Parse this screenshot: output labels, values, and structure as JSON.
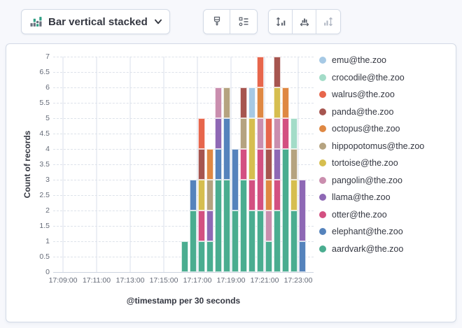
{
  "toolbar": {
    "chart_type_label": "Bar vertical stacked",
    "chart_type_icon": "stacked-bars-icon",
    "style_buttons": [
      {
        "name": "visual-options-button",
        "icon": "brush-icon",
        "enabled": true
      },
      {
        "name": "legend-settings-button",
        "icon": "list-settings-icon",
        "enabled": true
      }
    ],
    "axis_buttons": [
      {
        "name": "left-axis-button",
        "icon": "axis-left-icon",
        "enabled": true
      },
      {
        "name": "bottom-axis-button",
        "icon": "axis-bottom-icon",
        "enabled": true
      },
      {
        "name": "right-axis-button",
        "icon": "axis-right-icon",
        "enabled": false
      }
    ]
  },
  "chart": {
    "y_axis": {
      "title": "Count of records",
      "min": 0,
      "max": 7,
      "step": 0.5
    },
    "x_axis": {
      "title": "@timestamp per 30 seconds",
      "ticks": [
        "17:09:00",
        "17:11:00",
        "17:13:00",
        "17:15:00",
        "17:17:00",
        "17:19:00",
        "17:21:00",
        "17:23:00"
      ]
    },
    "legend_position": "right"
  },
  "chart_data": {
    "type": "bar",
    "stacked": true,
    "title": "",
    "xlabel": "@timestamp per 30 seconds",
    "ylabel": "Count of records",
    "ylim": [
      0,
      7
    ],
    "y_tick_step": 0.5,
    "grid": true,
    "x": [
      "17:16:00",
      "17:16:30",
      "17:17:00",
      "17:17:30",
      "17:18:00",
      "17:18:30",
      "17:19:00",
      "17:19:30",
      "17:20:00",
      "17:20:30",
      "17:21:00",
      "17:21:30",
      "17:22:00",
      "17:22:30",
      "17:23:00"
    ],
    "bucket_seconds": 30,
    "stack_order_note": "series listed bottom-to-top of stack; legend shows reverse order",
    "series": [
      {
        "name": "aardvark@the.zoo",
        "color": "#4aad90",
        "values": [
          1,
          2,
          1,
          1,
          3,
          3,
          2,
          3,
          2,
          2,
          1,
          2,
          4,
          2,
          0
        ]
      },
      {
        "name": "elephant@the.zoo",
        "color": "#5583bc",
        "values": [
          0,
          1,
          0,
          0,
          1,
          2,
          2,
          0,
          0,
          0,
          0,
          0,
          0,
          0,
          1
        ]
      },
      {
        "name": "otter@the.zoo",
        "color": "#d35081",
        "values": [
          0,
          0,
          1,
          0,
          0,
          0,
          0,
          1,
          1,
          2,
          0,
          1,
          1,
          0,
          0
        ]
      },
      {
        "name": "llama@the.zoo",
        "color": "#8e68b5",
        "values": [
          0,
          0,
          0,
          1,
          1,
          0,
          0,
          0,
          0,
          0,
          0,
          1,
          0,
          0,
          2
        ]
      },
      {
        "name": "pangolin@the.zoo",
        "color": "#ca8eae",
        "values": [
          0,
          0,
          0,
          0,
          1,
          0,
          0,
          0,
          0,
          1,
          1,
          1,
          0,
          0,
          0
        ]
      },
      {
        "name": "tortoise@the.zoo",
        "color": "#d6be4f",
        "values": [
          0,
          0,
          1,
          0,
          0,
          0,
          0,
          0,
          2,
          0,
          0,
          1,
          0,
          1,
          0
        ]
      },
      {
        "name": "hippopotomus@the.zoo",
        "color": "#b5a380",
        "values": [
          0,
          0,
          0,
          1,
          0,
          1,
          0,
          1,
          0,
          0,
          0,
          0,
          0,
          1,
          0
        ]
      },
      {
        "name": "octopus@the.zoo",
        "color": "#df8843",
        "values": [
          0,
          0,
          0,
          1,
          0,
          0,
          0,
          0,
          0,
          1,
          1,
          0,
          1,
          0,
          0
        ]
      },
      {
        "name": "panda@the.zoo",
        "color": "#a6554f",
        "values": [
          0,
          0,
          1,
          0,
          0,
          0,
          0,
          1,
          0,
          0,
          1,
          1,
          0,
          0,
          0
        ]
      },
      {
        "name": "walrus@the.zoo",
        "color": "#e7664c",
        "values": [
          0,
          0,
          1,
          0,
          0,
          0,
          0,
          0,
          0,
          1,
          1,
          0,
          0,
          0,
          0
        ]
      },
      {
        "name": "crocodile@the.zoo",
        "color": "#a3dcc8",
        "values": [
          0,
          0,
          0,
          0,
          0,
          0,
          0,
          0,
          0,
          0,
          0,
          0,
          0,
          1,
          0
        ]
      },
      {
        "name": "emu@the.zoo",
        "color": "#a6c9e5",
        "values": [
          0,
          0,
          0,
          0,
          0,
          0,
          0,
          0,
          1,
          0,
          0,
          0,
          0,
          0,
          0
        ]
      }
    ],
    "totals": [
      1,
      3,
      5,
      4,
      6,
      6,
      4,
      6,
      6,
      7,
      5,
      7,
      6,
      5,
      3
    ]
  },
  "colors": {
    "page_bg": "#f7f8fc",
    "panel_border": "#d3dae6",
    "text": "#343741",
    "tick_text": "#646a77",
    "icon_gray": "#5a606b",
    "icon_disabled": "#aeb5c2",
    "chart_icon_green": "#2e9e83",
    "chart_icon_gray": "#69707d"
  }
}
